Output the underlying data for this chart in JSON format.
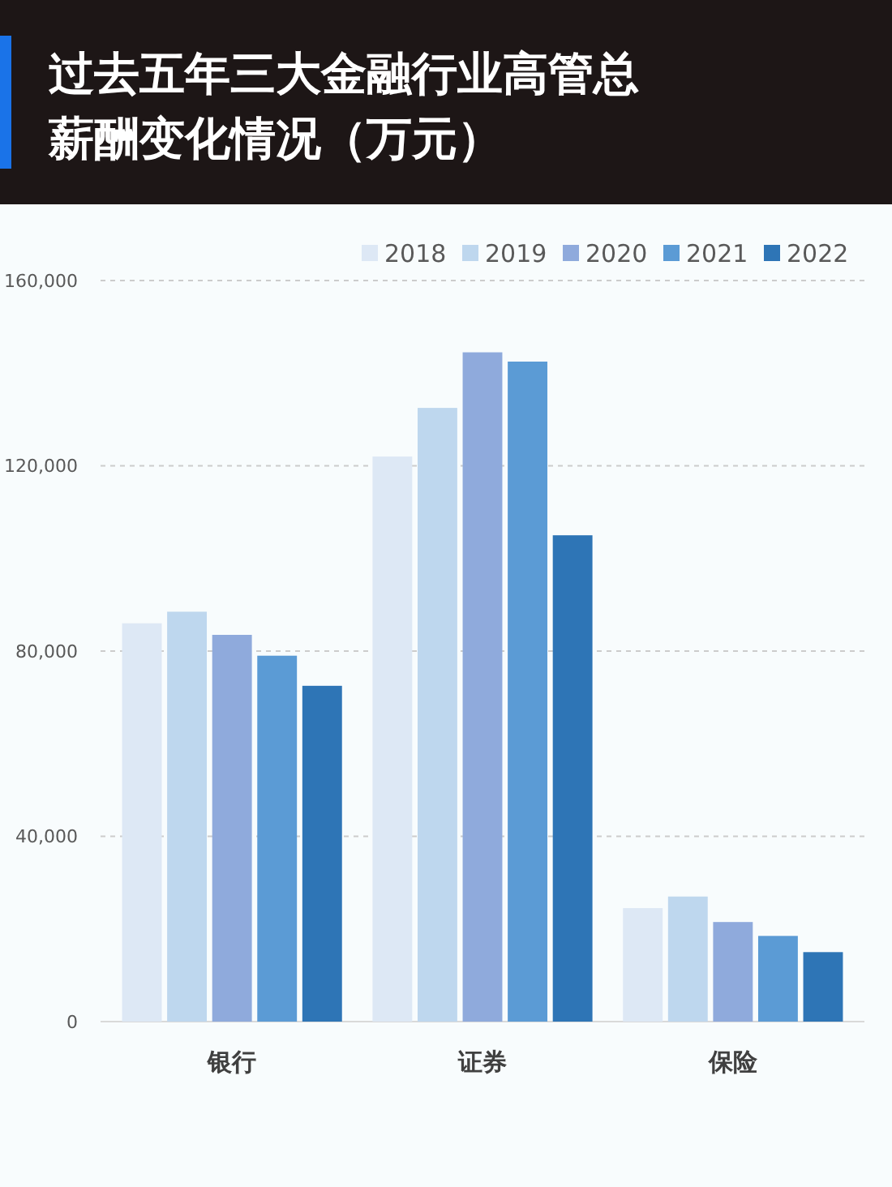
{
  "chart_data": {
    "type": "bar",
    "title": "过去五年三大金融行业高管总薪酬变化情况（万元）",
    "categories": [
      "银行",
      "证券",
      "保险"
    ],
    "series": [
      {
        "name": "2018",
        "color": "#dde8f5",
        "values": [
          86000,
          122000,
          24500
        ]
      },
      {
        "name": "2019",
        "color": "#bed7ee",
        "values": [
          88500,
          132500,
          27000
        ]
      },
      {
        "name": "2020",
        "color": "#8faadc",
        "values": [
          83500,
          144500,
          21500
        ]
      },
      {
        "name": "2021",
        "color": "#5b9bd5",
        "values": [
          79000,
          142500,
          18500
        ]
      },
      {
        "name": "2022",
        "color": "#2e75b6",
        "values": [
          72500,
          105000,
          15000
        ]
      }
    ],
    "ylim": [
      0,
      160000
    ],
    "yticks": [
      {
        "value": 0,
        "label": "0"
      },
      {
        "value": 40000,
        "label": "40,000"
      },
      {
        "value": 80000,
        "label": "80,000"
      },
      {
        "value": 120000,
        "label": "120,000"
      },
      {
        "value": 160000,
        "label": "160,000"
      }
    ],
    "grid": "y",
    "legend": "top right"
  }
}
